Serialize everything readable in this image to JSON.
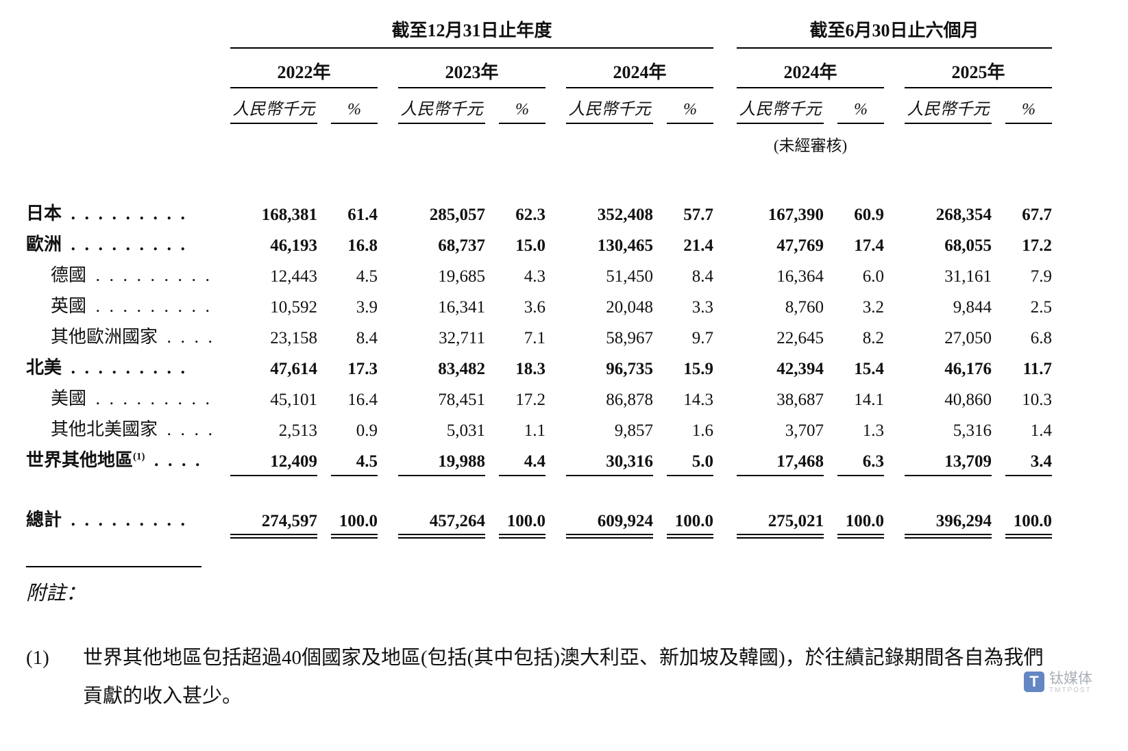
{
  "header": {
    "period_annual": "截至12月31日止年度",
    "period_interim": "截至6月30日止六個月",
    "years": [
      "2022年",
      "2023年",
      "2024年",
      "2024年",
      "2025年"
    ],
    "col_value": "人民幣千元",
    "col_pct": "%",
    "unaudited": "(未經審核)"
  },
  "table": {
    "rows": [
      {
        "label": "日本",
        "leader": ". . . . . . . . .",
        "indent": false,
        "bold": true,
        "cells": [
          "168,381",
          "61.4",
          "285,057",
          "62.3",
          "352,408",
          "57.7",
          "167,390",
          "60.9",
          "268,354",
          "67.7"
        ]
      },
      {
        "label": "歐洲",
        "leader": ". . . . . . . . .",
        "indent": false,
        "bold": true,
        "cells": [
          "46,193",
          "16.8",
          "68,737",
          "15.0",
          "130,465",
          "21.4",
          "47,769",
          "17.4",
          "68,055",
          "17.2"
        ]
      },
      {
        "label": "德國",
        "leader": ". . . . . . . . .",
        "indent": true,
        "bold": false,
        "cells": [
          "12,443",
          "4.5",
          "19,685",
          "4.3",
          "51,450",
          "8.4",
          "16,364",
          "6.0",
          "31,161",
          "7.9"
        ]
      },
      {
        "label": "英國",
        "leader": ". . . . . . . . .",
        "indent": true,
        "bold": false,
        "cells": [
          "10,592",
          "3.9",
          "16,341",
          "3.6",
          "20,048",
          "3.3",
          "8,760",
          "3.2",
          "9,844",
          "2.5"
        ]
      },
      {
        "label": "其他歐洲國家",
        "leader": ". . . .",
        "indent": true,
        "bold": false,
        "cells": [
          "23,158",
          "8.4",
          "32,711",
          "7.1",
          "58,967",
          "9.7",
          "22,645",
          "8.2",
          "27,050",
          "6.8"
        ]
      },
      {
        "label": "北美",
        "leader": ". . . . . . . . .",
        "indent": false,
        "bold": true,
        "cells": [
          "47,614",
          "17.3",
          "83,482",
          "18.3",
          "96,735",
          "15.9",
          "42,394",
          "15.4",
          "46,176",
          "11.7"
        ]
      },
      {
        "label": "美國",
        "leader": ". . . . . . . . .",
        "indent": true,
        "bold": false,
        "cells": [
          "45,101",
          "16.4",
          "78,451",
          "17.2",
          "86,878",
          "14.3",
          "38,687",
          "14.1",
          "40,860",
          "10.3"
        ]
      },
      {
        "label": "其他北美國家",
        "leader": ". . . .",
        "indent": true,
        "bold": false,
        "cells": [
          "2,513",
          "0.9",
          "5,031",
          "1.1",
          "9,857",
          "1.6",
          "3,707",
          "1.3",
          "5,316",
          "1.4"
        ]
      },
      {
        "label": "世界其他地區",
        "sup": "(1)",
        "leader": ". . . .",
        "indent": false,
        "bold": true,
        "rule": "single",
        "cells": [
          "12,409",
          "4.5",
          "19,988",
          "4.4",
          "30,316",
          "5.0",
          "17,468",
          "6.3",
          "13,709",
          "3.4"
        ]
      },
      {
        "label": "總計",
        "leader": ". . . . . . . . .",
        "indent": false,
        "bold": true,
        "rule": "double",
        "gap_before": true,
        "cells": [
          "274,597",
          "100.0",
          "457,264",
          "100.0",
          "609,924",
          "100.0",
          "275,021",
          "100.0",
          "396,294",
          "100.0"
        ]
      }
    ]
  },
  "notes": {
    "title": "附註：",
    "items": [
      {
        "num": "(1)",
        "text": "世界其他地區包括超過40個國家及地區(包括(其中包括)澳大利亞、新加坡及韓國)，於往績記錄期間各自為我們貢獻的收入甚少。"
      }
    ]
  },
  "watermark": {
    "logo_letter": "T",
    "name": "钛媒体",
    "sub": "TMTPOST",
    "logo_color": "#4a71b8"
  }
}
